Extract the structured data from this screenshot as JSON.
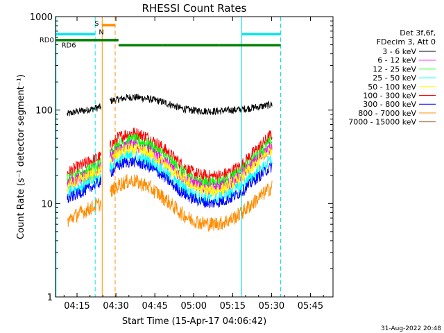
{
  "chart_data": {
    "type": "line",
    "title": "RHESSI Count Rates",
    "xlabel": "Start Time (15-Apr-17 04:06:42)",
    "ylabel": "Count Rate (s⁻¹ detector segment⁻¹)",
    "ylog": true,
    "xlim_minutes_after_start": [
      0,
      107
    ],
    "ylim": [
      1,
      1000
    ],
    "x_ticks": [
      {
        "label": "04:15",
        "minute": 8.3
      },
      {
        "label": "04:30",
        "minute": 23.3
      },
      {
        "label": "04:45",
        "minute": 38.3
      },
      {
        "label": "05:00",
        "minute": 53.3
      },
      {
        "label": "05:15",
        "minute": 68.3
      },
      {
        "label": "05:30",
        "minute": 83.3
      },
      {
        "label": "05:45",
        "minute": 98.3
      }
    ],
    "y_ticks": [
      {
        "label": "1",
        "value": 1
      },
      {
        "label": "10",
        "value": 10
      },
      {
        "label": "100",
        "value": 100
      },
      {
        "label": "1000",
        "value": 1000
      }
    ],
    "legend": {
      "placement": "right",
      "header": [
        "Det 3f,6f,",
        "FDecim 3, Att 0"
      ],
      "entries": [
        {
          "label": "3 - 6 keV",
          "color": "#000000"
        },
        {
          "label": "6 - 12 keV",
          "color": "#ff00ff"
        },
        {
          "label": "12 - 25 keV",
          "color": "#00ff00"
        },
        {
          "label": "25 - 50 keV",
          "color": "#00ffff"
        },
        {
          "label": "50 - 100 keV",
          "color": "#ffff00"
        },
        {
          "label": "100 - 300 keV",
          "color": "#ff0000"
        },
        {
          "label": "300 - 800 keV",
          "color": "#0000ff"
        },
        {
          "label": "800 - 7000 keV",
          "color": "#ff8c00"
        },
        {
          "label": "7000 - 15000 keV",
          "color": "#a0522d"
        }
      ]
    },
    "series": [
      {
        "name": "3 - 6 keV",
        "color": "#000000",
        "noise": 0.04,
        "segments": [
          {
            "x": [
              4.5,
              8,
              12,
              15.5,
              17.5
            ],
            "y": [
              90,
              96,
              100,
              105,
              108
            ]
          },
          {
            "x": [
              21,
              24,
              27,
              30,
              35,
              40,
              45,
              48,
              52,
              56,
              60,
              64,
              68,
              72,
              76,
              80,
              83.5
            ],
            "y": [
              125,
              130,
              135,
              138,
              133,
              125,
              113,
              105,
              100,
              98,
              97,
              98,
              100,
              102,
              106,
              110,
              115
            ]
          }
        ]
      },
      {
        "name": "100 - 300 keV",
        "color": "#ff0000",
        "noise": 0.07,
        "segments": [
          {
            "x": [
              4.5,
              8,
              12,
              15.5,
              17.5
            ],
            "y": [
              21,
              24,
              27,
              30,
              32
            ]
          },
          {
            "x": [
              21,
              24,
              27,
              30,
              35,
              40,
              45,
              48,
              52,
              56,
              60,
              64,
              68,
              72,
              76,
              80,
              83.5
            ],
            "y": [
              40,
              50,
              55,
              57,
              52,
              42,
              32,
              27,
              22,
              20,
              19.5,
              20,
              22,
              26,
              34,
              44,
              55
            ]
          }
        ]
      },
      {
        "name": "12 - 25 keV",
        "color": "#00ff00",
        "noise": 0.07,
        "segments": [
          {
            "x": [
              4.5,
              8,
              12,
              15.5,
              17.5
            ],
            "y": [
              18,
              20,
              22,
              25,
              27
            ]
          },
          {
            "x": [
              21,
              24,
              27,
              30,
              35,
              40,
              45,
              48,
              52,
              56,
              60,
              64,
              68,
              72,
              76,
              80,
              83.5
            ],
            "y": [
              34,
              42,
              47,
              48,
              44,
              36,
              27,
              23,
              19,
              17,
              16.5,
              17,
              19,
              22,
              29,
              38,
              47
            ]
          }
        ]
      },
      {
        "name": "6 - 12 keV",
        "color": "#ff00ff",
        "noise": 0.07,
        "segments": [
          {
            "x": [
              4.5,
              8,
              12,
              15.5,
              17.5
            ],
            "y": [
              16,
              18,
              20,
              22,
              24
            ]
          },
          {
            "x": [
              21,
              24,
              27,
              30,
              35,
              40,
              45,
              48,
              52,
              56,
              60,
              64,
              68,
              72,
              76,
              80,
              83.5
            ],
            "y": [
              30,
              37,
              41,
              42,
              38,
              31,
              24,
              20,
              17,
              15,
              14.5,
              15,
              17,
              20,
              26,
              33,
              41
            ]
          }
        ]
      },
      {
        "name": "50 - 100 keV",
        "color": "#ffff00",
        "noise": 0.07,
        "segments": [
          {
            "x": [
              4.5,
              8,
              12,
              15.5,
              17.5
            ],
            "y": [
              15,
              17,
              19,
              21,
              22
            ]
          },
          {
            "x": [
              21,
              24,
              27,
              30,
              35,
              40,
              45,
              48,
              52,
              56,
              60,
              64,
              68,
              72,
              76,
              80,
              83.5
            ],
            "y": [
              28,
              34,
              37,
              38,
              35,
              29,
              22,
              19,
              16,
              14,
              13.5,
              14,
              16,
              19,
              24,
              31,
              38
            ]
          }
        ]
      },
      {
        "name": "25 - 50 keV",
        "color": "#00ffff",
        "noise": 0.07,
        "segments": [
          {
            "x": [
              4.5,
              8,
              12,
              15.5,
              17.5
            ],
            "y": [
              13,
              14.5,
              16,
              18,
              19
            ]
          },
          {
            "x": [
              21,
              24,
              27,
              30,
              35,
              40,
              45,
              48,
              52,
              56,
              60,
              64,
              68,
              72,
              76,
              80,
              83.5
            ],
            "y": [
              24,
              28,
              31,
              32,
              29,
              24,
              18,
              15.5,
              13,
              11.5,
              11,
              11.5,
              13,
              15.5,
              19.5,
              24,
              30
            ]
          }
        ]
      },
      {
        "name": "300 - 800 keV",
        "color": "#0000ff",
        "noise": 0.06,
        "segments": [
          {
            "x": [
              4.5,
              8,
              12,
              15.5,
              17.5
            ],
            "y": [
              11,
              12.5,
              14,
              16,
              17
            ]
          },
          {
            "x": [
              21,
              24,
              27,
              30,
              35,
              40,
              45,
              48,
              52,
              56,
              60,
              64,
              68,
              72,
              76,
              80,
              83.5
            ],
            "y": [
              21,
              25,
              27.5,
              28,
              25.5,
              21,
              16,
              13.5,
              11.5,
              10.5,
              10,
              10.5,
              11.5,
              13.5,
              17,
              21,
              25
            ]
          }
        ]
      },
      {
        "name": "800 - 7000 keV",
        "color": "#ff8c00",
        "noise": 0.08,
        "segments": [
          {
            "x": [
              4.5,
              8,
              12,
              15.5,
              17.5
            ],
            "y": [
              6.5,
              7.5,
              8.5,
              9.5,
              10
            ]
          },
          {
            "x": [
              21,
              24,
              27,
              30,
              35,
              40,
              45,
              48,
              52,
              56,
              60,
              64,
              68,
              72,
              76,
              80,
              83.5
            ],
            "y": [
              13,
              15.5,
              17,
              17.5,
              15.5,
              12.5,
              9.5,
              8,
              6.8,
              6.2,
              6,
              6.2,
              6.8,
              8,
              10,
              12.5,
              15
            ]
          }
        ]
      }
    ],
    "time_markers": [
      {
        "minute": 0.2,
        "color": "#00e5ee",
        "dashed": false
      },
      {
        "minute": 15.3,
        "color": "#00e5ee",
        "dashed": true
      },
      {
        "minute": 18.0,
        "color": "#ff8c00",
        "dashed": false
      },
      {
        "minute": 23.0,
        "color": "#ff8c00",
        "dashed": true
      },
      {
        "minute": 71.8,
        "color": "#00e5ee",
        "dashed": false
      },
      {
        "minute": 86.8,
        "color": "#00e5ee",
        "dashed": true
      }
    ],
    "flag_bars": [
      {
        "name": "cyan-flag",
        "color": "#00e5ee",
        "y": 650,
        "spans": [
          [
            0.2,
            15.3
          ],
          [
            71.8,
            86.8
          ]
        ]
      },
      {
        "name": "rd0-flag",
        "color": "#008000",
        "y": 560,
        "spans": [
          [
            0.2,
            24.3
          ]
        ]
      },
      {
        "name": "rd6-flag",
        "color": "#008000",
        "y": 495,
        "spans": [
          [
            24.3,
            41.3
          ],
          [
            41.3,
            63.3
          ],
          [
            63.3,
            86.8
          ]
        ]
      },
      {
        "name": "orange-flag",
        "color": "#ff8c00",
        "y": 810,
        "spans": [
          [
            18.0,
            23.0
          ]
        ]
      }
    ],
    "annotations": [
      {
        "text": "RD0",
        "color": "#008000",
        "minute": -6.2,
        "value": 560
      },
      {
        "text": "RD6",
        "color": "#008000",
        "minute": 2.3,
        "value": 490
      },
      {
        "text": "S",
        "color": "#ff8c00",
        "minute": 15.0,
        "value": 840
      },
      {
        "text": "N",
        "color": "#00e5ee",
        "minute": 16.7,
        "value": 680
      }
    ],
    "timestamp": "31-Aug-2022 20:48"
  }
}
